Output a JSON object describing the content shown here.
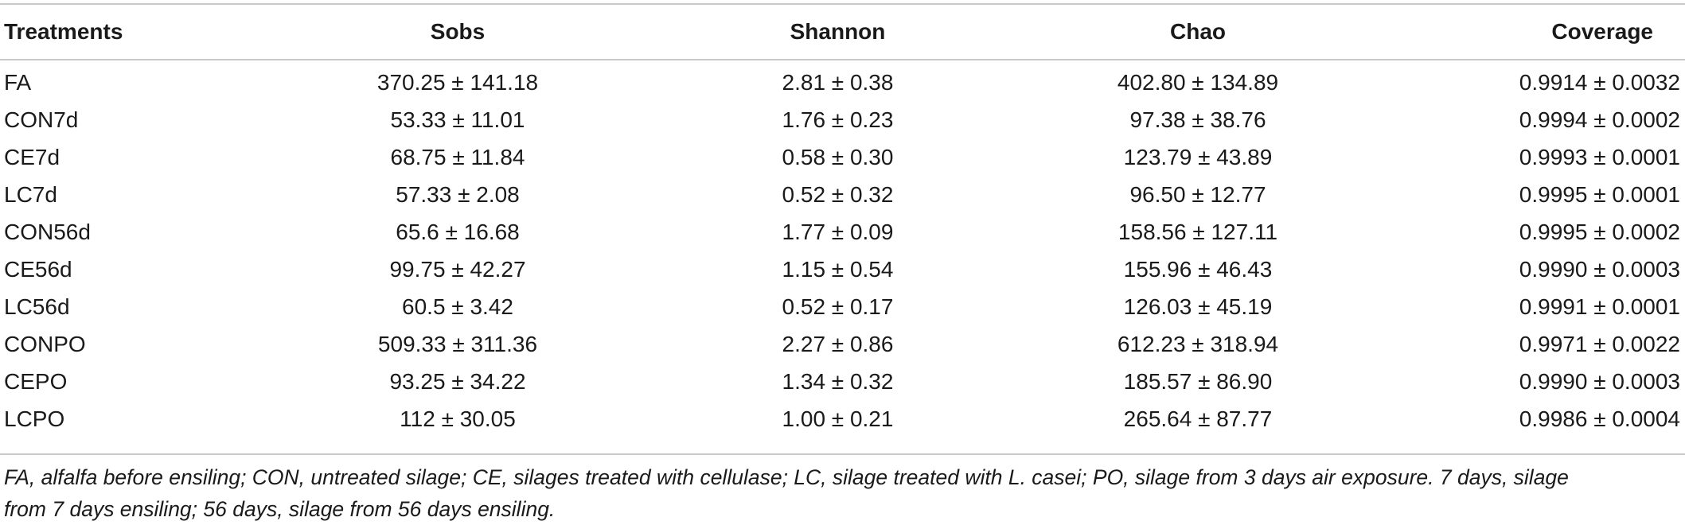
{
  "table": {
    "headers": [
      "Treatments",
      "Sobs",
      "Shannon",
      "Chao",
      "Coverage"
    ],
    "rows": [
      [
        "FA",
        "370.25 ± 141.18",
        "2.81 ± 0.38",
        "402.80 ± 134.89",
        "0.9914 ± 0.0032"
      ],
      [
        "CON7d",
        "53.33 ± 11.01",
        "1.76 ± 0.23",
        "97.38 ± 38.76",
        "0.9994 ± 0.0002"
      ],
      [
        "CE7d",
        "68.75 ± 11.84",
        "0.58 ± 0.30",
        "123.79 ± 43.89",
        "0.9993 ± 0.0001"
      ],
      [
        "LC7d",
        "57.33 ± 2.08",
        "0.52 ± 0.32",
        "96.50 ± 12.77",
        "0.9995 ± 0.0001"
      ],
      [
        "CON56d",
        "65.6 ± 16.68",
        "1.77 ± 0.09",
        "158.56 ± 127.11",
        "0.9995 ± 0.0002"
      ],
      [
        "CE56d",
        "99.75 ± 42.27",
        "1.15 ± 0.54",
        "155.96 ± 46.43",
        "0.9990 ± 0.0003"
      ],
      [
        "LC56d",
        "60.5 ± 3.42",
        "0.52 ± 0.17",
        "126.03 ± 45.19",
        "0.9991 ± 0.0001"
      ],
      [
        "CONPO",
        "509.33 ± 311.36",
        "2.27 ± 0.86",
        "612.23 ± 318.94",
        "0.9971 ± 0.0022"
      ],
      [
        "CEPO",
        "93.25 ± 34.22",
        "1.34 ± 0.32",
        "185.57 ± 86.90",
        "0.9990 ± 0.0003"
      ],
      [
        "LCPO",
        "112 ± 30.05",
        "1.00 ± 0.21",
        "265.64 ± 87.77",
        "0.9986 ± 0.0004"
      ]
    ]
  },
  "footnote": {
    "line1": "FA, alfalfa before ensiling; CON, untreated silage; CE, silages treated with cellulase; LC, silage treated with L. casei; PO, silage from 3 days air exposure. 7 days, silage",
    "line2": "from 7 days ensiling; 56 days, silage from 56 days ensiling."
  },
  "colors": {
    "rule": "#c9c9c9",
    "text": "#1a1a1a"
  }
}
